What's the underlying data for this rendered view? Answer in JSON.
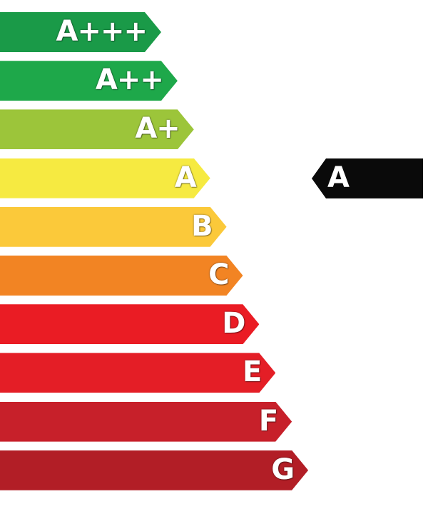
{
  "scale": {
    "classes": [
      {
        "label": "A+++",
        "color": "#1a9a48"
      },
      {
        "label": "A++",
        "color": "#1ea84a"
      },
      {
        "label": "A+",
        "color": "#9cc53a"
      },
      {
        "label": "A",
        "color": "#f6ea41"
      },
      {
        "label": "B",
        "color": "#fbc93a"
      },
      {
        "label": "C",
        "color": "#f28423"
      },
      {
        "label": "D",
        "color": "#ea1c24"
      },
      {
        "label": "E",
        "color": "#e41e26"
      },
      {
        "label": "F",
        "color": "#c7202a"
      },
      {
        "label": "G",
        "color": "#b21e26"
      }
    ]
  },
  "rating": {
    "label": "A",
    "color": "#0a0a0a"
  }
}
